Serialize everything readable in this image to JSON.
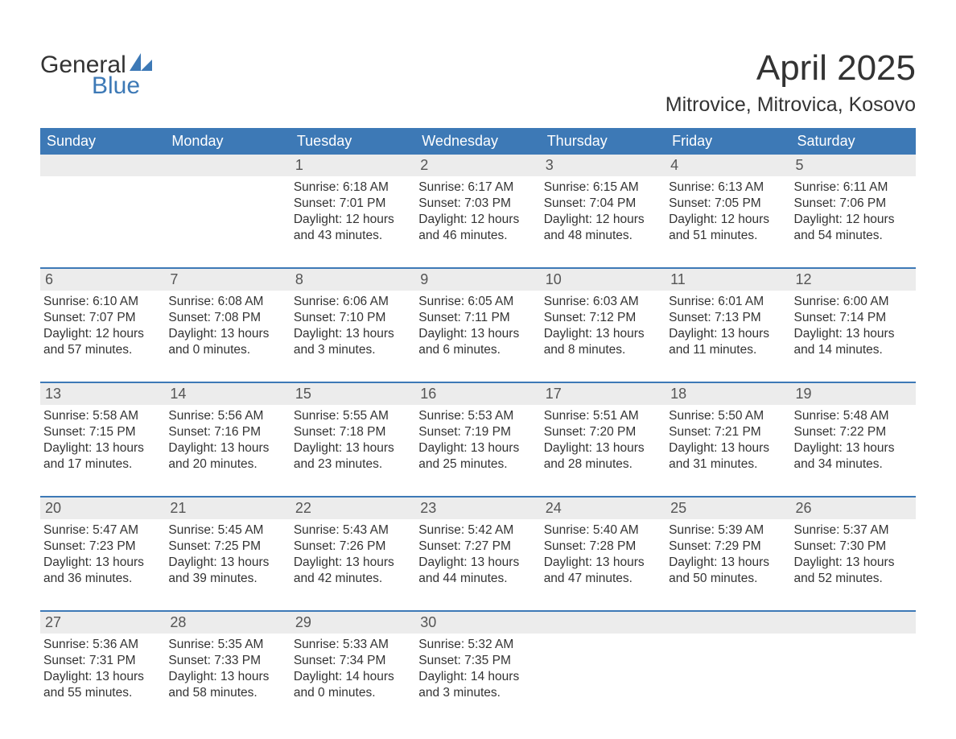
{
  "logo": {
    "word1": "General",
    "word2": "Blue",
    "brand_color": "#3d79b6"
  },
  "title": "April 2025",
  "location": "Mitrovice, Mitrovica, Kosovo",
  "header_bg": "#3d79b6",
  "header_text_color": "#ffffff",
  "daynum_bg": "#ececec",
  "week_border_color": "#3d79b6",
  "text_color": "#333333",
  "daynames": [
    "Sunday",
    "Monday",
    "Tuesday",
    "Wednesday",
    "Thursday",
    "Friday",
    "Saturday"
  ],
  "leading_blanks": 2,
  "days": [
    {
      "n": "1",
      "sunrise": "6:18 AM",
      "sunset": "7:01 PM",
      "dl1": "12 hours",
      "dl2": "and 43 minutes."
    },
    {
      "n": "2",
      "sunrise": "6:17 AM",
      "sunset": "7:03 PM",
      "dl1": "12 hours",
      "dl2": "and 46 minutes."
    },
    {
      "n": "3",
      "sunrise": "6:15 AM",
      "sunset": "7:04 PM",
      "dl1": "12 hours",
      "dl2": "and 48 minutes."
    },
    {
      "n": "4",
      "sunrise": "6:13 AM",
      "sunset": "7:05 PM",
      "dl1": "12 hours",
      "dl2": "and 51 minutes."
    },
    {
      "n": "5",
      "sunrise": "6:11 AM",
      "sunset": "7:06 PM",
      "dl1": "12 hours",
      "dl2": "and 54 minutes."
    },
    {
      "n": "6",
      "sunrise": "6:10 AM",
      "sunset": "7:07 PM",
      "dl1": "12 hours",
      "dl2": "and 57 minutes."
    },
    {
      "n": "7",
      "sunrise": "6:08 AM",
      "sunset": "7:08 PM",
      "dl1": "13 hours",
      "dl2": "and 0 minutes."
    },
    {
      "n": "8",
      "sunrise": "6:06 AM",
      "sunset": "7:10 PM",
      "dl1": "13 hours",
      "dl2": "and 3 minutes."
    },
    {
      "n": "9",
      "sunrise": "6:05 AM",
      "sunset": "7:11 PM",
      "dl1": "13 hours",
      "dl2": "and 6 minutes."
    },
    {
      "n": "10",
      "sunrise": "6:03 AM",
      "sunset": "7:12 PM",
      "dl1": "13 hours",
      "dl2": "and 8 minutes."
    },
    {
      "n": "11",
      "sunrise": "6:01 AM",
      "sunset": "7:13 PM",
      "dl1": "13 hours",
      "dl2": "and 11 minutes."
    },
    {
      "n": "12",
      "sunrise": "6:00 AM",
      "sunset": "7:14 PM",
      "dl1": "13 hours",
      "dl2": "and 14 minutes."
    },
    {
      "n": "13",
      "sunrise": "5:58 AM",
      "sunset": "7:15 PM",
      "dl1": "13 hours",
      "dl2": "and 17 minutes."
    },
    {
      "n": "14",
      "sunrise": "5:56 AM",
      "sunset": "7:16 PM",
      "dl1": "13 hours",
      "dl2": "and 20 minutes."
    },
    {
      "n": "15",
      "sunrise": "5:55 AM",
      "sunset": "7:18 PM",
      "dl1": "13 hours",
      "dl2": "and 23 minutes."
    },
    {
      "n": "16",
      "sunrise": "5:53 AM",
      "sunset": "7:19 PM",
      "dl1": "13 hours",
      "dl2": "and 25 minutes."
    },
    {
      "n": "17",
      "sunrise": "5:51 AM",
      "sunset": "7:20 PM",
      "dl1": "13 hours",
      "dl2": "and 28 minutes."
    },
    {
      "n": "18",
      "sunrise": "5:50 AM",
      "sunset": "7:21 PM",
      "dl1": "13 hours",
      "dl2": "and 31 minutes."
    },
    {
      "n": "19",
      "sunrise": "5:48 AM",
      "sunset": "7:22 PM",
      "dl1": "13 hours",
      "dl2": "and 34 minutes."
    },
    {
      "n": "20",
      "sunrise": "5:47 AM",
      "sunset": "7:23 PM",
      "dl1": "13 hours",
      "dl2": "and 36 minutes."
    },
    {
      "n": "21",
      "sunrise": "5:45 AM",
      "sunset": "7:25 PM",
      "dl1": "13 hours",
      "dl2": "and 39 minutes."
    },
    {
      "n": "22",
      "sunrise": "5:43 AM",
      "sunset": "7:26 PM",
      "dl1": "13 hours",
      "dl2": "and 42 minutes."
    },
    {
      "n": "23",
      "sunrise": "5:42 AM",
      "sunset": "7:27 PM",
      "dl1": "13 hours",
      "dl2": "and 44 minutes."
    },
    {
      "n": "24",
      "sunrise": "5:40 AM",
      "sunset": "7:28 PM",
      "dl1": "13 hours",
      "dl2": "and 47 minutes."
    },
    {
      "n": "25",
      "sunrise": "5:39 AM",
      "sunset": "7:29 PM",
      "dl1": "13 hours",
      "dl2": "and 50 minutes."
    },
    {
      "n": "26",
      "sunrise": "5:37 AM",
      "sunset": "7:30 PM",
      "dl1": "13 hours",
      "dl2": "and 52 minutes."
    },
    {
      "n": "27",
      "sunrise": "5:36 AM",
      "sunset": "7:31 PM",
      "dl1": "13 hours",
      "dl2": "and 55 minutes."
    },
    {
      "n": "28",
      "sunrise": "5:35 AM",
      "sunset": "7:33 PM",
      "dl1": "13 hours",
      "dl2": "and 58 minutes."
    },
    {
      "n": "29",
      "sunrise": "5:33 AM",
      "sunset": "7:34 PM",
      "dl1": "14 hours",
      "dl2": "and 0 minutes."
    },
    {
      "n": "30",
      "sunrise": "5:32 AM",
      "sunset": "7:35 PM",
      "dl1": "14 hours",
      "dl2": "and 3 minutes."
    }
  ],
  "labels": {
    "sunrise": "Sunrise: ",
    "sunset": "Sunset: ",
    "daylight": "Daylight: "
  }
}
